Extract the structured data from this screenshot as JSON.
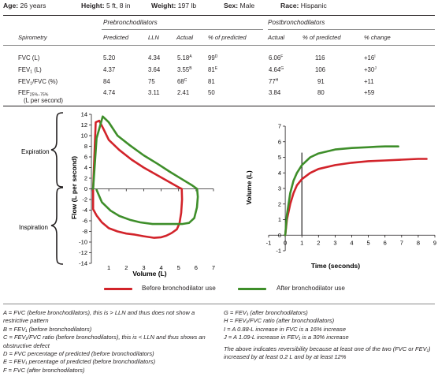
{
  "patient": {
    "age_label": "Age:",
    "age_value": "26 years",
    "height_label": "Height:",
    "height_value": "5 ft, 8 in",
    "weight_label": "Weight:",
    "weight_value": "197 lb",
    "sex_label": "Sex:",
    "sex_value": "Male",
    "race_label": "Race:",
    "race_value": "Hispanic"
  },
  "table": {
    "group_pre": "Prebronchodilators",
    "group_post": "Postbronchodilators",
    "columns": [
      "Spirometry",
      "Predicted",
      "LLN",
      "Actual",
      "% of predicted",
      "Actual",
      "% of predicted",
      "% change"
    ],
    "rows": [
      {
        "name": "FVC (L)",
        "predicted": "5.20",
        "lln": "4.34",
        "pre_actual": "5.18",
        "pre_actual_sup": "A",
        "pre_pct": "99",
        "pre_pct_sup": "D",
        "post_actual": "6.06",
        "post_actual_sup": "F",
        "post_pct": "116",
        "change": "+16",
        "change_sup": "I"
      },
      {
        "name": "FEV",
        "name_sub": "1",
        "name_tail": " (L)",
        "predicted": "4.37",
        "lln": "3.64",
        "pre_actual": "3.55",
        "pre_actual_sup": "B",
        "pre_pct": "81",
        "pre_pct_sup": "E",
        "post_actual": "4.64",
        "post_actual_sup": "G",
        "post_pct": "106",
        "change": "+30",
        "change_sup": "J"
      },
      {
        "name": "FEV",
        "name_sub": "1",
        "name_tail": "/FVC (%)",
        "predicted": "84",
        "lln": "75",
        "pre_actual": "68",
        "pre_actual_sup": "C",
        "pre_pct": "81",
        "pre_pct_sup": "",
        "post_actual": "77",
        "post_actual_sup": "H",
        "post_pct": "91",
        "change": "+11",
        "change_sup": ""
      },
      {
        "name": "FEF",
        "name_sub": "25%–75%",
        "name_tail": "",
        "name_line2": "(L per second)",
        "predicted": "4.74",
        "lln": "3.11",
        "pre_actual": "2.41",
        "pre_actual_sup": "",
        "pre_pct": "50",
        "pre_pct_sup": "",
        "post_actual": "3.84",
        "post_actual_sup": "",
        "post_pct": "80",
        "change": "+59",
        "change_sup": ""
      }
    ]
  },
  "colors": {
    "before": "#d2232a",
    "after": "#3e8e2a",
    "text": "#231f20"
  },
  "chart_data": [
    {
      "type": "line",
      "xlabel": "Volume (L)",
      "ylabel": "Flow (L per second)",
      "xlim": [
        0,
        7
      ],
      "ylim": [
        -14,
        14
      ],
      "xticks": [
        0,
        1,
        2,
        3,
        4,
        5,
        6,
        7
      ],
      "yticks": [
        -14,
        -12,
        -10,
        -8,
        -6,
        -4,
        -2,
        0,
        2,
        4,
        6,
        8,
        10,
        12,
        14
      ],
      "grid": false,
      "annotations": {
        "expiration": "Expiration",
        "inspiration": "Inspiration"
      },
      "series": [
        {
          "name": "Before bronchodilator use",
          "color": "#d2232a",
          "x": [
            0.1,
            0.25,
            0.45,
            0.7,
            1.0,
            1.6,
            2.3,
            3.0,
            3.7,
            4.4,
            5.0,
            5.18,
            5.2,
            5.15,
            5.05,
            4.9,
            4.6,
            4.3,
            4.0,
            3.6,
            3.0,
            2.5,
            2.0,
            1.5,
            1.0,
            0.6,
            0.3,
            0.1,
            0.1
          ],
          "y": [
            0,
            12.5,
            12.8,
            11.2,
            9.2,
            7.3,
            5.5,
            4.0,
            2.7,
            1.4,
            0.3,
            0,
            -2.0,
            -4.5,
            -6.5,
            -7.6,
            -8.3,
            -8.8,
            -9.1,
            -9.2,
            -8.9,
            -8.6,
            -8.4,
            -8.0,
            -7.4,
            -6.3,
            -5.0,
            -3.8,
            0
          ]
        },
        {
          "name": "After bronchodilator use",
          "color": "#3e8e2a",
          "x": [
            0.1,
            0.3,
            0.65,
            1.0,
            1.5,
            2.2,
            3.0,
            3.8,
            4.5,
            5.2,
            5.8,
            6.06,
            6.1,
            6.05,
            5.9,
            5.6,
            5.2,
            4.8,
            4.2,
            3.5,
            2.8,
            2.2,
            1.6,
            1.1,
            0.6,
            0.3
          ],
          "y": [
            0,
            9.5,
            13.6,
            12.5,
            10.0,
            8.2,
            6.3,
            4.7,
            3.2,
            1.8,
            0.6,
            0,
            -1.5,
            -3.5,
            -5.5,
            -6.4,
            -6.6,
            -6.6,
            -6.6,
            -6.6,
            -6.3,
            -5.8,
            -5.1,
            -4.1,
            -2.5,
            -0.2
          ]
        }
      ]
    },
    {
      "type": "line",
      "xlabel": "Time (seconds)",
      "ylabel": "Volume (L)",
      "xlim": [
        -1,
        9
      ],
      "ylim": [
        -1,
        7
      ],
      "xticks": [
        -1,
        0,
        1,
        2,
        3,
        4,
        5,
        6,
        7,
        8,
        9
      ],
      "yticks": [
        -1,
        0,
        1,
        2,
        3,
        4,
        5,
        6,
        7
      ],
      "grid": false,
      "marker_x": 1,
      "series": [
        {
          "name": "Before bronchodilator use",
          "color": "#d2232a",
          "x": [
            0,
            0.1,
            0.3,
            0.5,
            0.7,
            1.0,
            1.5,
            2.0,
            3.0,
            4.0,
            5.0,
            6.0,
            7.0,
            8.0,
            8.5
          ],
          "y": [
            0,
            1.0,
            2.0,
            2.7,
            3.2,
            3.6,
            4.0,
            4.25,
            4.5,
            4.65,
            4.75,
            4.8,
            4.85,
            4.9,
            4.9
          ]
        },
        {
          "name": "After bronchodilator use",
          "color": "#3e8e2a",
          "x": [
            0,
            0.1,
            0.3,
            0.5,
            0.7,
            1.0,
            1.5,
            2.0,
            3.0,
            4.0,
            5.0,
            5.5,
            6.0,
            6.8
          ],
          "y": [
            0,
            1.3,
            2.7,
            3.5,
            4.0,
            4.5,
            5.0,
            5.25,
            5.5,
            5.6,
            5.65,
            5.68,
            5.7,
            5.7
          ]
        }
      ]
    }
  ],
  "legend": {
    "before": "Before bronchodilator use",
    "after": "After bronchodilator use"
  },
  "footnotes_left": [
    "A = FVC (before bronchodilators), this is > LLN and thus does not show a restrictive pattern",
    "B = FEV₁ (before bronchodilators)",
    "C = FEV₁/FVC ratio (before bronchodilators), this is < LLN and thus shows an obstructive defect",
    "D = FVC percentage of predicted (before bronchodilators)",
    "E = FEV₁ percentage of predicted (before bronchodilators)",
    "F = FVC (after bronchodilators)"
  ],
  "footnotes_right": [
    "G = FEV₁ (after bronchodilators)",
    "H = FEV₁/FVC ratio (after bronchodilators)",
    "I = A 0.88-L increase in FVC is a 16% increase",
    "J = A 1.09-L increase in FEV₁ is a 30% increase",
    "The above indicates reversibility because at least one of the two (FVC or FEV₁) increased by at least 0.2 L and by at least 12%"
  ]
}
